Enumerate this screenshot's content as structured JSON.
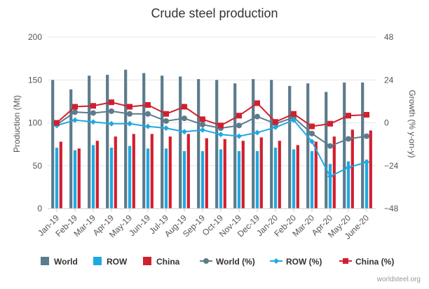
{
  "chart_data": {
    "type": "bar",
    "title": "Crude steel production",
    "categories": [
      "Jan-19",
      "Feb-19",
      "Mar-19",
      "Apr-19",
      "May-19",
      "Jun-19",
      "Jul-19",
      "Aug-19",
      "Sep-19",
      "Oct-19",
      "Nov-19",
      "Dec-19",
      "Jan-20",
      "Feb-20",
      "Mar-20",
      "Apr-20",
      "May-20",
      "June-20"
    ],
    "ylabel": "Production (Mt)",
    "ylim": [
      0,
      200
    ],
    "yticks": [
      "0",
      "50",
      "100",
      "150",
      "200"
    ],
    "y2label": "Growth (% y-on-y)",
    "y2lim": [
      -48,
      48
    ],
    "y2ticks": [
      "−48",
      "−24",
      "0",
      "24",
      "48"
    ],
    "grid": true,
    "legend_position": "bottom",
    "bar_series": [
      {
        "name": "World",
        "color": "#5c7b8c",
        "values": [
          150,
          139,
          155,
          156,
          162,
          158,
          155,
          154,
          151,
          150,
          146,
          151,
          150,
          143,
          146,
          136,
          147,
          147
        ]
      },
      {
        "name": "ROW",
        "color": "#1fa9e1",
        "values": [
          71,
          68,
          74,
          71,
          73,
          70,
          70,
          67,
          67,
          69,
          67,
          67,
          71,
          69,
          67,
          52,
          55,
          57
        ]
      },
      {
        "name": "China",
        "color": "#d21f2f",
        "values": [
          78,
          70,
          79,
          84,
          87,
          87,
          84,
          87,
          82,
          81,
          79,
          83,
          79,
          74,
          78,
          84,
          92,
          91
        ]
      }
    ],
    "line_series": [
      {
        "name": "World (%)",
        "color": "#5c7b8c",
        "marker": "circle",
        "values": [
          -1,
          6,
          5.5,
          6.5,
          5,
          5,
          1,
          2.5,
          -1,
          -3,
          -1.5,
          3.5,
          -0.5,
          3,
          -6,
          -13,
          -9,
          -7.5
        ]
      },
      {
        "name": "ROW (%)",
        "color": "#1fa9e1",
        "marker": "diamond",
        "values": [
          -1.5,
          1.5,
          0.5,
          -0.5,
          -0.5,
          -2,
          -3,
          -5,
          -4,
          -6.5,
          -7.5,
          -5.5,
          -2.5,
          1.5,
          -10.5,
          -30,
          -25,
          -22
        ]
      },
      {
        "name": "China (%)",
        "color": "#d21f2f",
        "marker": "square",
        "values": [
          0,
          9,
          9.5,
          11.5,
          9,
          10,
          5,
          9,
          2,
          -1.5,
          4,
          11,
          0.5,
          5,
          -2,
          -0.5,
          4,
          4.5
        ]
      }
    ],
    "credit": "worldsteel.org"
  }
}
